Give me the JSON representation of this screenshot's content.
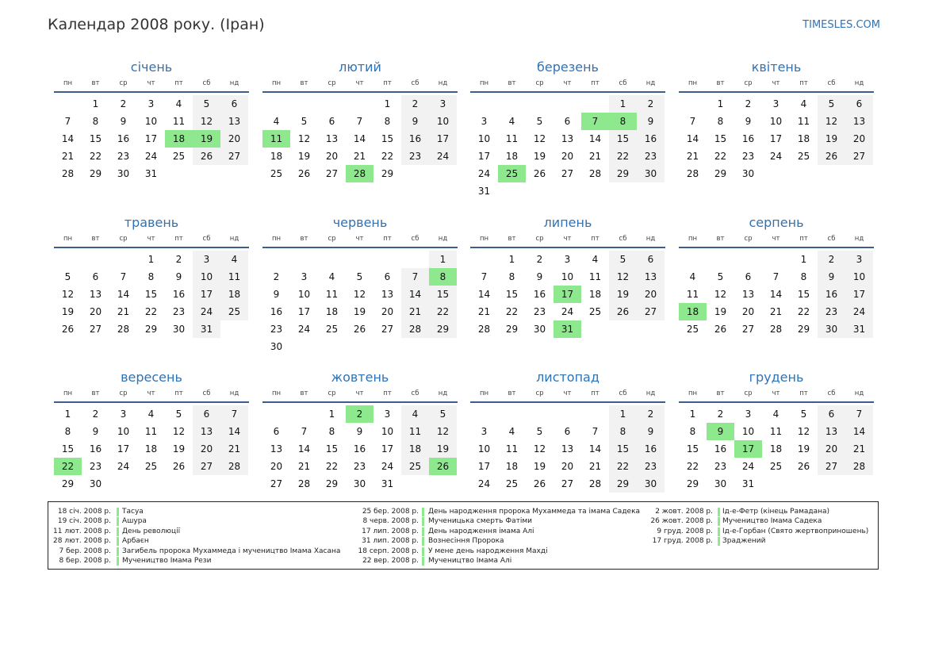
{
  "header": {
    "title": "Календар 2008 року. (Іран)",
    "site": "TIMESLES.COM"
  },
  "weekdays": [
    "пн",
    "вт",
    "ср",
    "чт",
    "пт",
    "сб",
    "нд"
  ],
  "colors": {
    "accent": "#2f73b5",
    "holiday": "#8ee88e",
    "weekend": "#f2f2f2",
    "rule": "#3b5e8c"
  },
  "year": 2008,
  "months": [
    {
      "name": "січень",
      "first_weekday": 1,
      "days": 31,
      "holidays": [
        18,
        19
      ]
    },
    {
      "name": "лютий",
      "first_weekday": 4,
      "days": 29,
      "holidays": [
        11,
        28
      ]
    },
    {
      "name": "березень",
      "first_weekday": 5,
      "days": 31,
      "holidays": [
        7,
        8,
        25
      ]
    },
    {
      "name": "квітень",
      "first_weekday": 1,
      "days": 30,
      "holidays": []
    },
    {
      "name": "травень",
      "first_weekday": 3,
      "days": 31,
      "holidays": []
    },
    {
      "name": "червень",
      "first_weekday": 6,
      "days": 30,
      "holidays": [
        8
      ]
    },
    {
      "name": "липень",
      "first_weekday": 1,
      "days": 31,
      "holidays": [
        17,
        31
      ]
    },
    {
      "name": "серпень",
      "first_weekday": 4,
      "days": 31,
      "holidays": [
        18
      ]
    },
    {
      "name": "вересень",
      "first_weekday": 0,
      "days": 30,
      "holidays": [
        22
      ]
    },
    {
      "name": "жовтень",
      "first_weekday": 2,
      "days": 31,
      "holidays": [
        2,
        26
      ]
    },
    {
      "name": "листопад",
      "first_weekday": 5,
      "days": 30,
      "holidays": []
    },
    {
      "name": "грудень",
      "first_weekday": 0,
      "days": 31,
      "holidays": [
        9,
        17
      ]
    }
  ],
  "holiday_list": [
    [
      {
        "date": "18 січ. 2008 р.",
        "name": "Тасуа"
      },
      {
        "date": "19 січ. 2008 р.",
        "name": "Ашура"
      },
      {
        "date": "11 лют. 2008 р.",
        "name": "День революції"
      },
      {
        "date": "28 лют. 2008 р.",
        "name": "Арбаєн"
      },
      {
        "date": "7 бер. 2008 р.",
        "name": "Загибель пророка Мухаммеда і мучеництво Імама Хасана"
      },
      {
        "date": "8 бер. 2008 р.",
        "name": "Мучеництво Імама Рези"
      }
    ],
    [
      {
        "date": "25 бер. 2008 р.",
        "name": "День народження пророка Мухаммеда та імама Садека"
      },
      {
        "date": "8 черв. 2008 р.",
        "name": "Мученицька смерть Фатіми"
      },
      {
        "date": "17 лип. 2008 р.",
        "name": "День народження імама Алі"
      },
      {
        "date": "31 лип. 2008 р.",
        "name": "Вознесіння Пророка"
      },
      {
        "date": "18 серп. 2008 р.",
        "name": "У мене день народження Махді"
      },
      {
        "date": "22 вер. 2008 р.",
        "name": "Мучеництво Імама Алі"
      }
    ],
    [
      {
        "date": "2 жовт. 2008 р.",
        "name": "Ід-е-Фетр (кінець Рамадана)"
      },
      {
        "date": "26 жовт. 2008 р.",
        "name": "Мучеництво Імама Садека"
      },
      {
        "date": "9 груд. 2008 р.",
        "name": "Ід-е-Горбан (Свято жертвоприношень)"
      },
      {
        "date": "17 груд. 2008 р.",
        "name": "Зраджений"
      }
    ]
  ]
}
